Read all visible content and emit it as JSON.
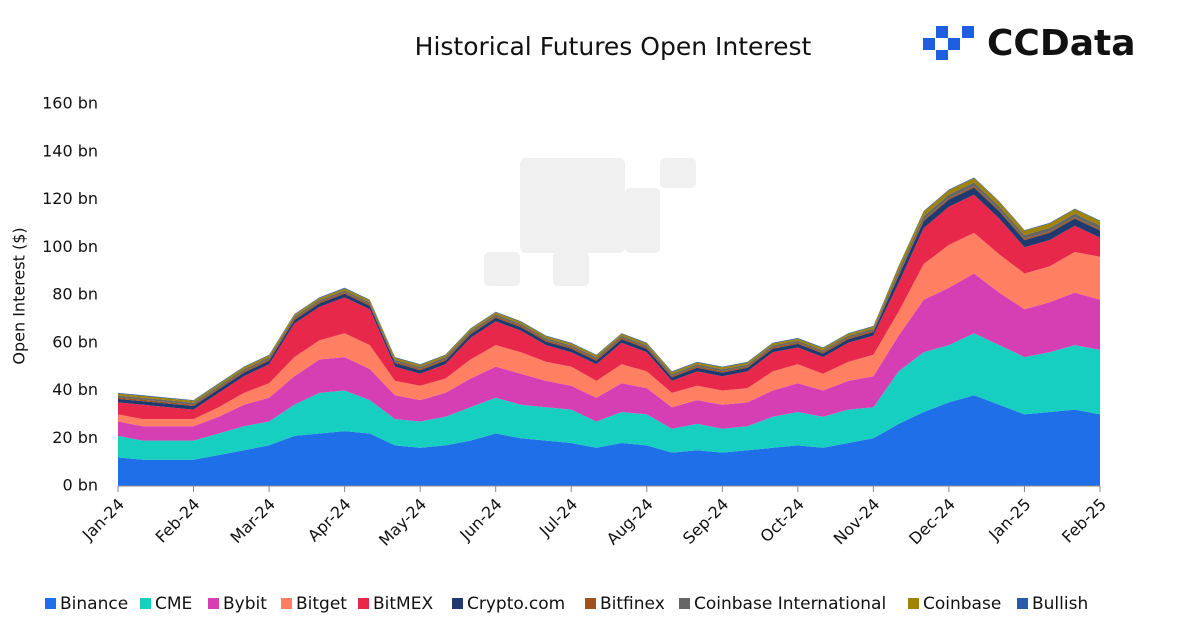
{
  "brand": "CCData",
  "chart_data": {
    "type": "stacked-area",
    "title": "Historical Futures Open Interest",
    "y_label": "Open Interest ($)",
    "categories": [
      "Jan-24",
      null,
      null,
      "Feb-24",
      null,
      null,
      "Mar-24",
      null,
      null,
      "Apr-24",
      null,
      null,
      "May-24",
      null,
      null,
      "Jun-24",
      null,
      null,
      "Jul-24",
      null,
      null,
      "Aug-24",
      null,
      null,
      "Sep-24",
      null,
      null,
      "Oct-24",
      null,
      null,
      "Nov-24",
      null,
      null,
      "Dec-24",
      null,
      null,
      "Jan-25",
      null,
      null,
      "Feb-25"
    ],
    "ylim": [
      0,
      160
    ],
    "yticks": [
      {
        "value": 0,
        "label": "0 bn"
      },
      {
        "value": 20,
        "label": "20 bn"
      },
      {
        "value": 40,
        "label": "40 bn"
      },
      {
        "value": 60,
        "label": "60 bn"
      },
      {
        "value": 80,
        "label": "80 bn"
      },
      {
        "value": 100,
        "label": "100 bn"
      },
      {
        "value": 120,
        "label": "120 bn"
      },
      {
        "value": 140,
        "label": "140 bn"
      },
      {
        "value": 160,
        "label": "160 bn"
      }
    ],
    "legend": "bottom",
    "series": [
      {
        "name": "Binance",
        "color": "#1f6fe8",
        "values": [
          12,
          11,
          11,
          11,
          13,
          15,
          17,
          21,
          22,
          23,
          22,
          17,
          16,
          17,
          19,
          22,
          20,
          19,
          18,
          16,
          18,
          17,
          14,
          15,
          14,
          15,
          16,
          17,
          16,
          18,
          20,
          26,
          31,
          35,
          38,
          34,
          30,
          31,
          32,
          30
        ]
      },
      {
        "name": "CME",
        "color": "#17cfc0",
        "values": [
          9,
          8,
          8,
          8,
          9,
          10,
          10,
          13,
          17,
          17,
          14,
          11,
          11,
          12,
          14,
          15,
          14,
          14,
          14,
          11,
          13,
          13,
          10,
          11,
          10,
          10,
          13,
          14,
          13,
          14,
          13,
          22,
          25,
          24,
          26,
          25,
          24,
          25,
          27,
          27
        ]
      },
      {
        "name": "Bybit",
        "color": "#d63fb4",
        "values": [
          6,
          6,
          6,
          6,
          7,
          9,
          10,
          12,
          14,
          14,
          13,
          10,
          9,
          10,
          12,
          13,
          13,
          11,
          10,
          10,
          12,
          11,
          9,
          10,
          10,
          10,
          11,
          12,
          11,
          12,
          13,
          15,
          22,
          24,
          25,
          22,
          20,
          21,
          22,
          21
        ]
      },
      {
        "name": "Bitget",
        "color": "#ff7f63",
        "values": [
          3,
          3,
          3,
          3,
          4,
          5,
          6,
          8,
          8,
          10,
          10,
          6,
          6,
          6,
          8,
          9,
          9,
          8,
          8,
          7,
          8,
          7,
          6,
          6,
          6,
          6,
          8,
          8,
          7,
          8,
          9,
          10,
          15,
          18,
          17,
          16,
          15,
          15,
          17,
          18
        ]
      },
      {
        "name": "BitMEX",
        "color": "#e8284a",
        "values": [
          5,
          6,
          5,
          4,
          6,
          7,
          8,
          14,
          14,
          15,
          15,
          6,
          5,
          6,
          9,
          10,
          9,
          7,
          6,
          7,
          9,
          8,
          5,
          6,
          6,
          7,
          8,
          7,
          7,
          8,
          8,
          12,
          15,
          16,
          16,
          15,
          11,
          11,
          11,
          8
        ]
      },
      {
        "name": "Crypto.com",
        "color": "#1e3a6e",
        "values": [
          1.5,
          1.5,
          1.5,
          1.5,
          1.5,
          1.5,
          1.5,
          1.5,
          1.5,
          1.5,
          1.5,
          1.5,
          1.5,
          1.5,
          1.5,
          1.5,
          1.5,
          1.5,
          1.5,
          1.5,
          1.5,
          1.5,
          1.5,
          1.5,
          1.5,
          1.5,
          1.5,
          1.5,
          1.5,
          1.5,
          1.5,
          3,
          3,
          3,
          3,
          3,
          3,
          3,
          3,
          3
        ]
      },
      {
        "name": "Bitfinex",
        "color": "#a0521d",
        "values": [
          0.6,
          0.6,
          0.6,
          0.6,
          0.6,
          0.6,
          0.6,
          0.6,
          0.6,
          0.6,
          0.6,
          0.6,
          0.6,
          0.6,
          0.6,
          0.6,
          0.6,
          0.6,
          0.6,
          0.6,
          0.6,
          0.6,
          0.6,
          0.6,
          0.6,
          0.6,
          0.6,
          0.6,
          0.6,
          0.6,
          0.6,
          0.6,
          0.6,
          0.6,
          0.6,
          0.6,
          0.6,
          0.6,
          0.6,
          0.6
        ]
      },
      {
        "name": "Coinbase International",
        "color": "#666666",
        "values": [
          0.8,
          0.8,
          0.8,
          0.8,
          0.8,
          0.8,
          0.8,
          0.8,
          0.8,
          0.8,
          0.8,
          0.8,
          0.8,
          0.8,
          0.8,
          0.8,
          0.8,
          0.8,
          0.8,
          0.8,
          0.8,
          0.8,
          0.8,
          0.8,
          0.8,
          0.8,
          0.8,
          0.8,
          0.8,
          0.8,
          0.8,
          1.5,
          1.5,
          1.5,
          1.5,
          1.5,
          1.5,
          1.5,
          1.5,
          1.5
        ]
      },
      {
        "name": "Coinbase",
        "color": "#a08400",
        "values": [
          0.8,
          0.8,
          0.8,
          0.8,
          0.8,
          0.8,
          0.8,
          0.8,
          0.8,
          0.8,
          0.8,
          0.8,
          0.8,
          0.8,
          0.8,
          0.8,
          0.8,
          0.8,
          0.8,
          0.8,
          0.8,
          0.8,
          0.8,
          0.8,
          0.8,
          0.8,
          0.8,
          0.8,
          0.8,
          0.8,
          0.8,
          1.8,
          1.8,
          1.8,
          1.8,
          1.8,
          1.8,
          1.8,
          1.8,
          1.8
        ]
      },
      {
        "name": "Bullish",
        "color": "#2a5ba8",
        "values": [
          0.3,
          0.3,
          0.3,
          0.3,
          0.3,
          0.3,
          0.3,
          0.3,
          0.3,
          0.3,
          0.3,
          0.3,
          0.3,
          0.3,
          0.3,
          0.3,
          0.3,
          0.3,
          0.3,
          0.3,
          0.3,
          0.3,
          0.3,
          0.3,
          0.3,
          0.3,
          0.3,
          0.3,
          0.3,
          0.3,
          0.3,
          0.3,
          0.3,
          0.3,
          0.3,
          0.3,
          0.3,
          0.3,
          0.3,
          0.3
        ]
      }
    ]
  }
}
